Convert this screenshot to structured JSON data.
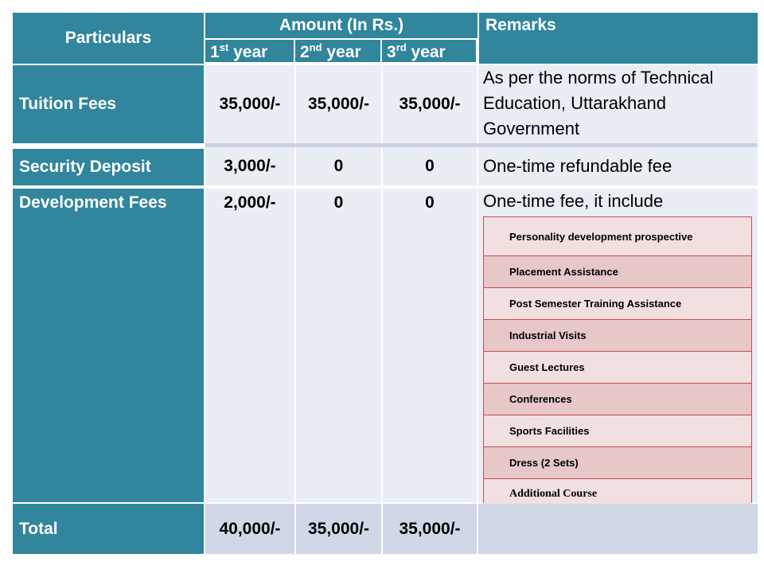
{
  "header": {
    "particulars": "Particulars",
    "amount": "Amount (In Rs.)",
    "remarks": "Remarks",
    "year1": {
      "num": "1",
      "sup": "st",
      "word": " year"
    },
    "year2": {
      "num": "2",
      "sup": "nd",
      "word": " year"
    },
    "year3": {
      "num": "3",
      "sup": "rd",
      "word": " year"
    }
  },
  "rows": [
    {
      "label": "Tuition Fees",
      "y1": "35,000/-",
      "y2": "35,000/-",
      "y3": "35,000/-",
      "remark": "As per the norms of Technical Education, Uttarakhand Government"
    },
    {
      "label": "Security Deposit",
      "y1": "3,000/-",
      "y2": "0",
      "y3": "0",
      "remark": "One-time refundable fee"
    },
    {
      "label": "Development Fees",
      "y1": "2,000/-",
      "y2": "0",
      "y3": "0",
      "remark": "One-time fee, it include"
    }
  ],
  "includes": [
    "Personality development  prospective",
    "Placement Assistance",
    "Post Semester Training Assistance",
    "Industrial Visits",
    "Guest Lectures",
    "Conferences",
    "Sports Facilities",
    " Dress (2 Sets)",
    "Additional  Course"
  ],
  "total": {
    "label": "Total",
    "y1": "40,000/-",
    "y2": "35,000/-",
    "y3": "35,000/-"
  }
}
